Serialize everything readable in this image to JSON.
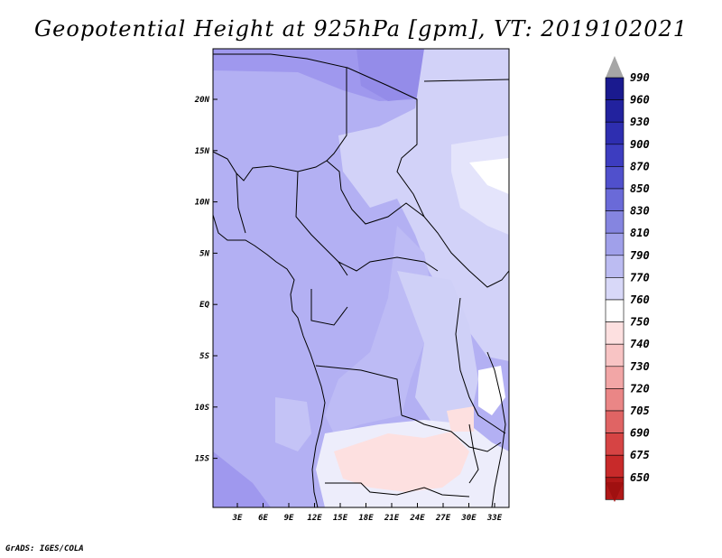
{
  "title": "Geopotential Height at 925hPa [gpm], VT: 2019102021",
  "credit": "GrADS: IGES/COLA",
  "map": {
    "lon_ticks": [
      "3E",
      "6E",
      "9E",
      "12E",
      "15E",
      "18E",
      "21E",
      "24E",
      "27E",
      "30E",
      "33E"
    ],
    "lat_ticks": [
      "20N",
      "15N",
      "10N",
      "5N",
      "EQ",
      "5S",
      "10S",
      "15S"
    ]
  },
  "colorbar": {
    "levels": [
      "990",
      "960",
      "930",
      "900",
      "870",
      "850",
      "830",
      "810",
      "790",
      "770",
      "760",
      "750",
      "740",
      "730",
      "720",
      "705",
      "690",
      "675",
      "650"
    ],
    "colors": [
      "#1a1a8f",
      "#22229e",
      "#2e2eb0",
      "#3d3dc0",
      "#5050cc",
      "#6a6ad8",
      "#8585e0",
      "#a0a0ea",
      "#bcbcf2",
      "#d8d8f8",
      "#ffffff",
      "#fde0e0",
      "#f8c4c4",
      "#f2a6a6",
      "#ea8686",
      "#e06464",
      "#d64444",
      "#c82a2a",
      "#b01818"
    ],
    "top_arrow_color": "#a6a6a6",
    "bottom_arrow_color": "#a01010"
  }
}
